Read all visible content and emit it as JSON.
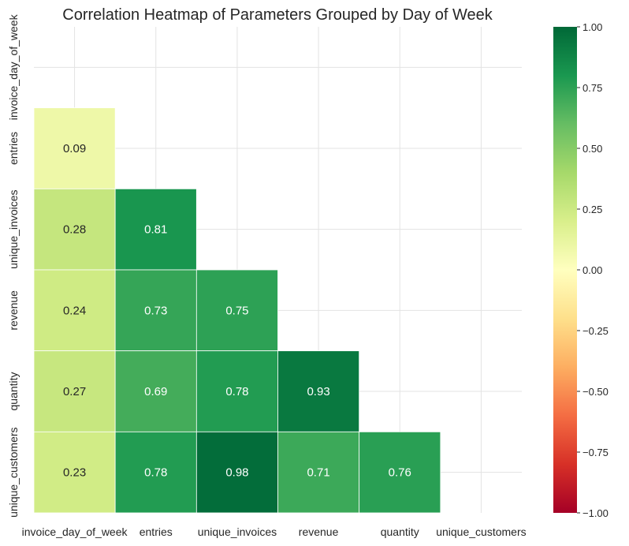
{
  "chart_data": {
    "type": "heatmap",
    "title": "Correlation Heatmap of Parameters Grouped by Day of Week",
    "variables": [
      "invoice_day_of_week",
      "entries",
      "unique_invoices",
      "revenue",
      "quantity",
      "unique_customers"
    ],
    "mask": "upper-triangle-including-diagonal",
    "matrix": [
      [
        null,
        null,
        null,
        null,
        null,
        null
      ],
      [
        0.09,
        null,
        null,
        null,
        null,
        null
      ],
      [
        0.28,
        0.81,
        null,
        null,
        null,
        null
      ],
      [
        0.24,
        0.73,
        0.75,
        null,
        null,
        null
      ],
      [
        0.27,
        0.69,
        0.78,
        0.93,
        null,
        null
      ],
      [
        0.23,
        0.78,
        0.98,
        0.71,
        0.76,
        null
      ]
    ],
    "value_format": "0.00",
    "colormap": "RdYlGn",
    "vmin": -1.0,
    "vmax": 1.0,
    "colorbar_ticks": [
      "1.00",
      "0.75",
      "0.50",
      "0.25",
      "0.00",
      "−0.25",
      "−0.50",
      "−0.75",
      "−1.00"
    ],
    "grid": true,
    "cell_border_color": "#ffffff"
  }
}
